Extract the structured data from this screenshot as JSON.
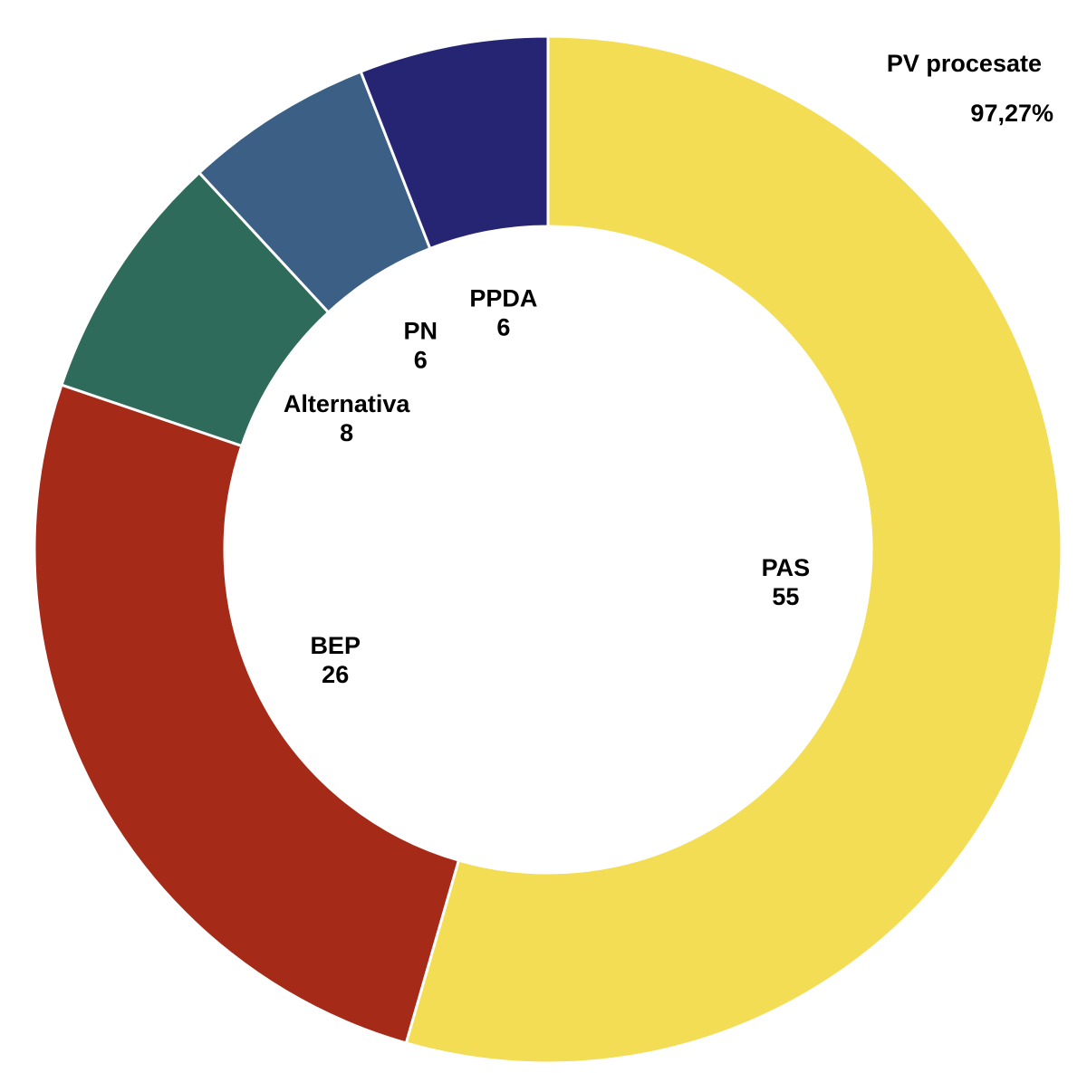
{
  "chart_data": {
    "type": "donut",
    "title": "PV procesate",
    "subtitle": "97,27%",
    "categories": [
      "PAS",
      "BEP",
      "Alternativa",
      "PN",
      "PPDA"
    ],
    "values": [
      55,
      26,
      8,
      6,
      6
    ],
    "colors": [
      "#f2dd55",
      "#a62a18",
      "#2e6b5a",
      "#3b5f85",
      "#252574"
    ]
  }
}
